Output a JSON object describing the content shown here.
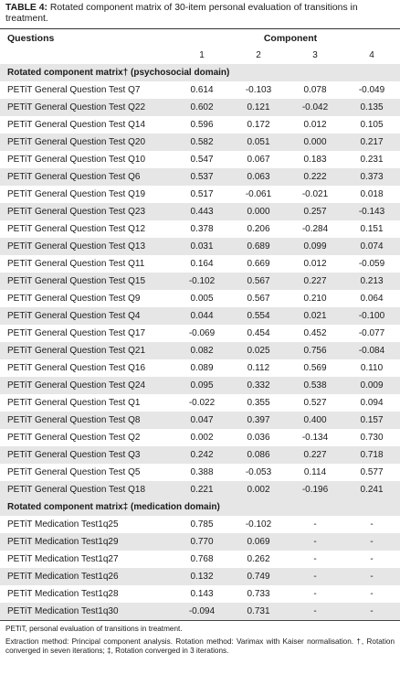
{
  "caption": {
    "label": "TABLE 4:",
    "text": " Rotated component matrix of 30-item personal evaluation of transitions in treatment."
  },
  "header": {
    "questions": "Questions",
    "component": "Component",
    "columns": [
      "1",
      "2",
      "3",
      "4"
    ]
  },
  "sections": [
    {
      "title": "Rotated component matrix† (psychosocial domain)",
      "rows": [
        {
          "q": "PETiT General Question Test Q7",
          "v": [
            "0.614",
            "-0.103",
            "0.078",
            "-0.049"
          ]
        },
        {
          "q": "PETiT General Question Test Q22",
          "v": [
            "0.602",
            "0.121",
            "-0.042",
            "0.135"
          ]
        },
        {
          "q": "PETiT General Question Test Q14",
          "v": [
            "0.596",
            "0.172",
            "0.012",
            "0.105"
          ]
        },
        {
          "q": "PETiT General Question Test Q20",
          "v": [
            "0.582",
            "0.051",
            "0.000",
            "0.217"
          ]
        },
        {
          "q": "PETiT General Question Test Q10",
          "v": [
            "0.547",
            "0.067",
            "0.183",
            "0.231"
          ]
        },
        {
          "q": "PETiT General Question Test Q6",
          "v": [
            "0.537",
            "0.063",
            "0.222",
            "0.373"
          ]
        },
        {
          "q": "PETiT General Question Test Q19",
          "v": [
            "0.517",
            "-0.061",
            "-0.021",
            "0.018"
          ]
        },
        {
          "q": "PETiT General Question Test Q23",
          "v": [
            "0.443",
            "0.000",
            "0.257",
            "-0.143"
          ]
        },
        {
          "q": "PETiT General Question Test Q12",
          "v": [
            "0.378",
            "0.206",
            "-0.284",
            "0.151"
          ]
        },
        {
          "q": "PETiT General Question Test Q13",
          "v": [
            "0.031",
            "0.689",
            "0.099",
            "0.074"
          ]
        },
        {
          "q": "PETiT General Question Test Q11",
          "v": [
            "0.164",
            "0.669",
            "0.012",
            "-0.059"
          ]
        },
        {
          "q": "PETiT General Question Test Q15",
          "v": [
            "-0.102",
            "0.567",
            "0.227",
            "0.213"
          ]
        },
        {
          "q": "PETiT General Question Test Q9",
          "v": [
            "0.005",
            "0.567",
            "0.210",
            "0.064"
          ]
        },
        {
          "q": "PETiT General Question Test Q4",
          "v": [
            "0.044",
            "0.554",
            "0.021",
            "-0.100"
          ]
        },
        {
          "q": "PETiT General Question Test Q17",
          "v": [
            "-0.069",
            "0.454",
            "0.452",
            "-0.077"
          ]
        },
        {
          "q": "PETiT General Question Test Q21",
          "v": [
            "0.082",
            "0.025",
            "0.756",
            "-0.084"
          ]
        },
        {
          "q": "PETiT General Question Test Q16",
          "v": [
            "0.089",
            "0.112",
            "0.569",
            "0.110"
          ]
        },
        {
          "q": "PETiT General Question Test Q24",
          "v": [
            "0.095",
            "0.332",
            "0.538",
            "0.009"
          ]
        },
        {
          "q": "PETiT General Question Test Q1",
          "v": [
            "-0.022",
            "0.355",
            "0.527",
            "0.094"
          ]
        },
        {
          "q": "PETiT General Question Test Q8",
          "v": [
            "0.047",
            "0.397",
            "0.400",
            "0.157"
          ]
        },
        {
          "q": "PETiT General Question Test Q2",
          "v": [
            "0.002",
            "0.036",
            "-0.134",
            "0.730"
          ]
        },
        {
          "q": "PETiT General Question Test Q3",
          "v": [
            "0.242",
            "0.086",
            "0.227",
            "0.718"
          ]
        },
        {
          "q": "PETiT General Question Test Q5",
          "v": [
            "0.388",
            "-0.053",
            "0.114",
            "0.577"
          ]
        },
        {
          "q": "PETiT General Question Test Q18",
          "v": [
            "0.221",
            "0.002",
            "-0.196",
            "0.241"
          ]
        }
      ]
    },
    {
      "title": "Rotated component matrix‡ (medication domain)",
      "rows": [
        {
          "q": "PETiT Medication Test1q25",
          "v": [
            "0.785",
            "-0.102",
            "-",
            "-"
          ]
        },
        {
          "q": "PETiT Medication Test1q29",
          "v": [
            "0.770",
            "0.069",
            "-",
            "-"
          ]
        },
        {
          "q": "PETiT Medication Test1q27",
          "v": [
            "0.768",
            "0.262",
            "-",
            "-"
          ]
        },
        {
          "q": "PETiT Medication Test1q26",
          "v": [
            "0.132",
            "0.749",
            "-",
            "-"
          ]
        },
        {
          "q": "PETiT Medication Test1q28",
          "v": [
            "0.143",
            "0.733",
            "-",
            "-"
          ]
        },
        {
          "q": "PETiT Medication Test1q30",
          "v": [
            "-0.094",
            "0.731",
            "-",
            "-"
          ]
        }
      ]
    }
  ],
  "footnotes": [
    "PETiT, personal evaluation of transitions in treatment.",
    "Extraction method: Principal component analysis. Rotation method: Varimax with Kaiser normalisation. †, Rotation converged in seven iterations; ‡, Rotation converged in 3 iterations."
  ]
}
